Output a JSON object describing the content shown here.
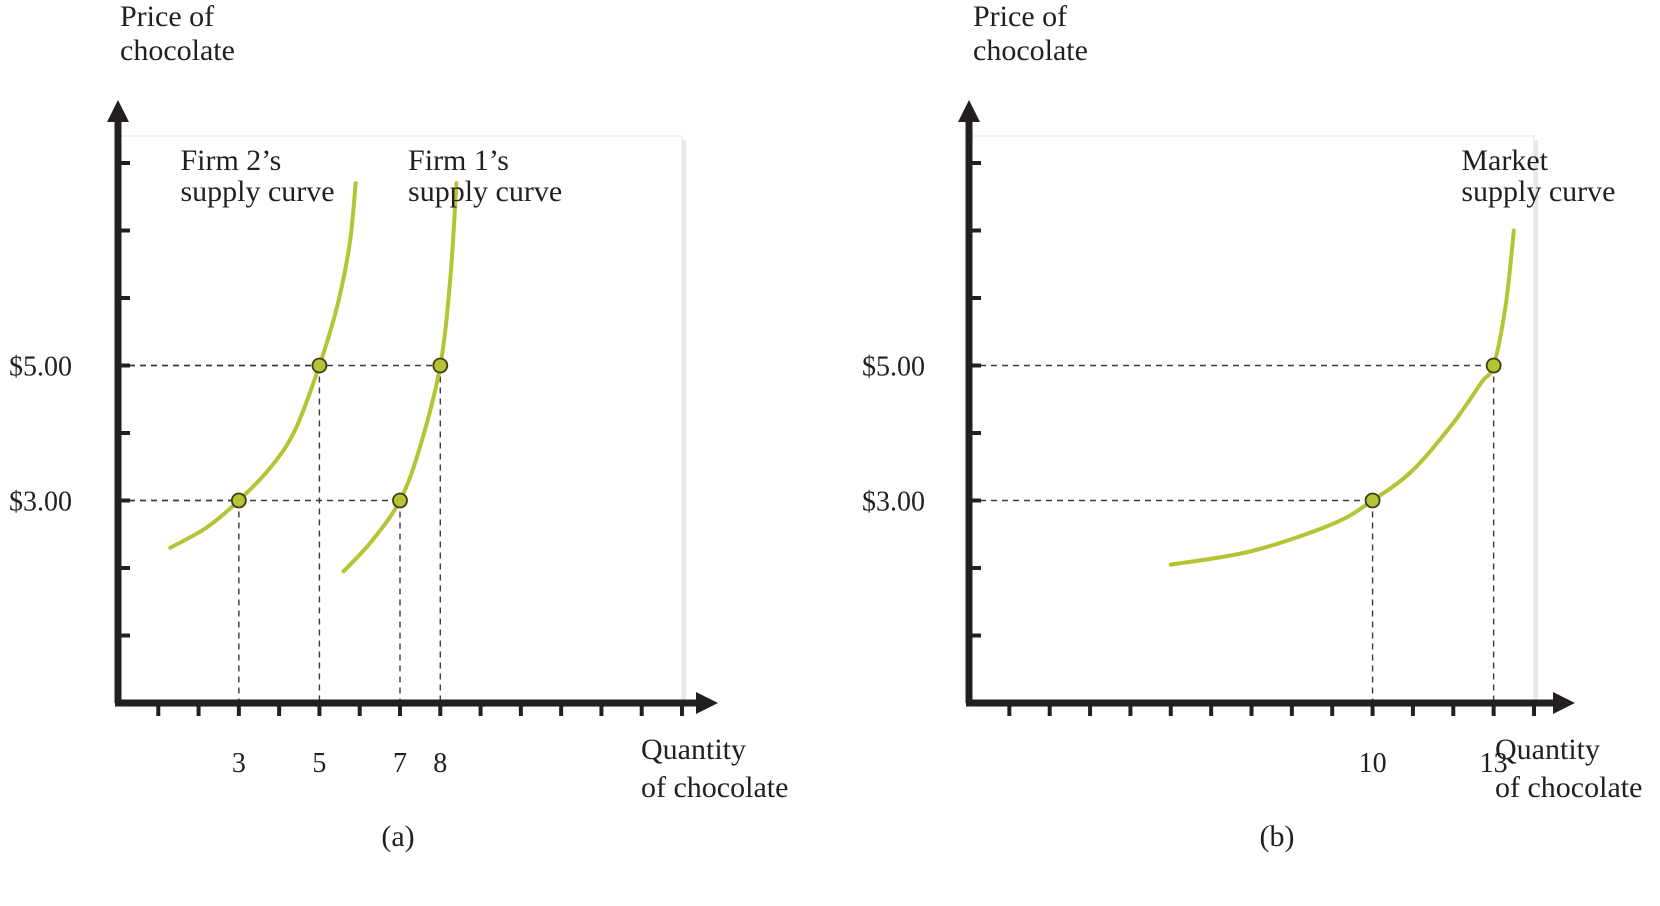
{
  "colors": {
    "curve": "#b5c434",
    "point_fill": "#b5c434",
    "point_stroke": "#3d3d1a",
    "axis": "#231f20",
    "dash": "#3a3a3a",
    "plot_bg": "#ffffff"
  },
  "chart_data": [
    {
      "panel_label": "(a)",
      "type": "line",
      "ylabel": [
        "Price of",
        "chocolate"
      ],
      "xlabel": [
        "Quantity",
        "of chocolate"
      ],
      "xlim": [
        0,
        14
      ],
      "ylim": [
        0,
        8.4
      ],
      "x_ticks": [
        1,
        2,
        3,
        4,
        5,
        6,
        7,
        8,
        9,
        10,
        11,
        12,
        13,
        14
      ],
      "y_ticks": [
        1,
        2,
        3,
        4,
        5,
        6,
        7,
        8
      ],
      "x_tick_labels": [
        {
          "x": 3,
          "label": "3"
        },
        {
          "x": 5,
          "label": "5"
        },
        {
          "x": 7,
          "label": "7"
        },
        {
          "x": 8,
          "label": "8"
        }
      ],
      "y_tick_labels": [
        {
          "y": 3,
          "label": "$3.00"
        },
        {
          "y": 5,
          "label": "$5.00"
        }
      ],
      "series": [
        {
          "name": "Firm 2's supply curve",
          "label_lines": [
            "Firm 2’s",
            "supply curve"
          ],
          "label_anchor": {
            "x": 1.55,
            "y": 7.9
          },
          "x": [
            1.3,
            2.2,
            3.0,
            3.8,
            4.4,
            5.0,
            5.45,
            5.75,
            5.9
          ],
          "y": [
            2.3,
            2.6,
            3.0,
            3.5,
            4.05,
            5.0,
            5.9,
            6.8,
            7.7
          ],
          "points": [
            {
              "x": 3,
              "y": 3
            },
            {
              "x": 5,
              "y": 5
            }
          ]
        },
        {
          "name": "Firm 1's supply curve",
          "label_lines": [
            "Firm 1’s",
            "supply curve"
          ],
          "label_anchor": {
            "x": 7.2,
            "y": 7.9
          },
          "x": [
            5.6,
            6.3,
            7.0,
            7.5,
            8.0,
            8.25,
            8.4
          ],
          "y": [
            1.95,
            2.4,
            3.0,
            3.8,
            5.0,
            6.3,
            7.7
          ],
          "points": [
            {
              "x": 7,
              "y": 3
            },
            {
              "x": 8,
              "y": 5
            }
          ]
        }
      ]
    },
    {
      "panel_label": "(b)",
      "type": "line",
      "ylabel": [
        "Price of",
        "chocolate"
      ],
      "xlabel": [
        "Quantity",
        "of chocolate"
      ],
      "xlim": [
        0,
        14
      ],
      "ylim": [
        0,
        8.4
      ],
      "x_ticks": [
        1,
        2,
        3,
        4,
        5,
        6,
        7,
        8,
        9,
        10,
        11,
        12,
        13,
        14
      ],
      "y_ticks": [
        1,
        2,
        3,
        4,
        5,
        6,
        7,
        8
      ],
      "x_tick_labels": [
        {
          "x": 10,
          "label": "10"
        },
        {
          "x": 13,
          "label": "13"
        }
      ],
      "y_tick_labels": [
        {
          "y": 3,
          "label": "$3.00"
        },
        {
          "y": 5,
          "label": "$5.00"
        }
      ],
      "series": [
        {
          "name": "Market supply curve",
          "label_lines": [
            "Market",
            "supply curve"
          ],
          "label_anchor": {
            "x": 12.2,
            "y": 7.9
          },
          "x": [
            5.0,
            7.0,
            9.0,
            10.0,
            11.0,
            12.0,
            12.7,
            13.0,
            13.3,
            13.5
          ],
          "y": [
            2.05,
            2.25,
            2.65,
            3.0,
            3.45,
            4.15,
            4.75,
            5.0,
            5.9,
            7.0
          ],
          "points": [
            {
              "x": 10,
              "y": 3
            },
            {
              "x": 13,
              "y": 5
            }
          ]
        }
      ]
    }
  ]
}
